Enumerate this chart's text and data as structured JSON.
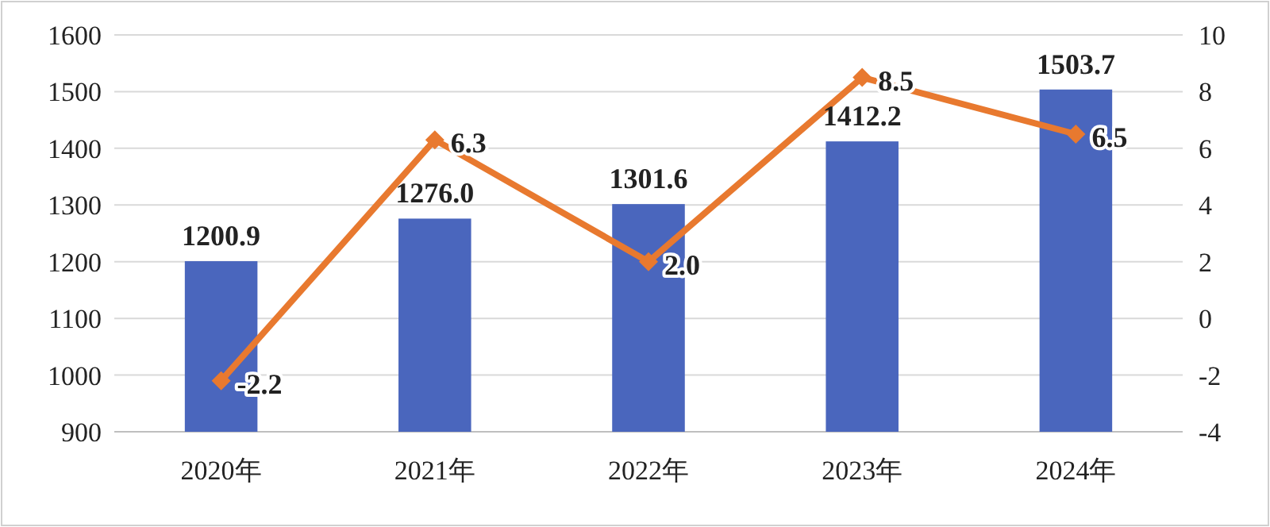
{
  "chart_data": {
    "type": "bar",
    "categories": [
      "2020年",
      "2021年",
      "2022年",
      "2023年",
      "2024年"
    ],
    "series": [
      {
        "color": "#4a66bd",
        "values": [
          1200.9,
          1276.0,
          1301.6,
          1412.2,
          1503.7
        ],
        "value_labels": [
          "1200.9",
          "1276.0",
          "1301.6",
          "1412.2",
          "1503.7"
        ]
      },
      {
        "type": "line",
        "axis": "y2",
        "color": "#e8792f",
        "marker": "diamond",
        "values": [
          -2.2,
          6.3,
          2.0,
          8.5,
          6.5
        ],
        "value_labels": [
          "-2.2",
          "6.3",
          "2.0",
          "8.5",
          "6.5"
        ]
      }
    ],
    "ylim": [
      900,
      1600
    ],
    "yticks": [
      900,
      1000,
      1100,
      1200,
      1300,
      1400,
      1500,
      1600
    ],
    "y2lim": [
      -4,
      10
    ],
    "y2ticks": [
      -4,
      -2,
      0,
      2,
      4,
      6,
      8,
      10
    ],
    "grid": "y"
  }
}
